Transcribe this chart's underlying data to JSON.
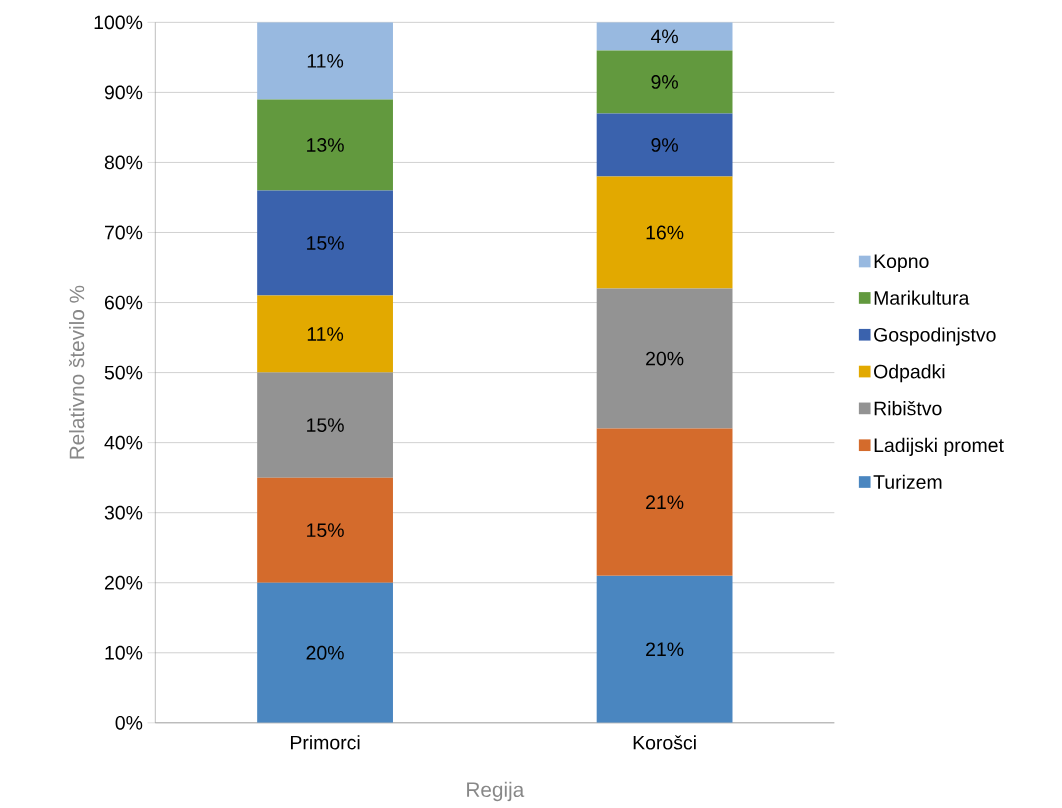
{
  "chart_data": {
    "type": "bar",
    "stacked": true,
    "xlabel": "Regija",
    "ylabel": "Relativno število %",
    "categories": [
      "Primorci",
      "Korošci"
    ],
    "series": [
      {
        "name": "Turizem",
        "color": "#4a86c0",
        "values": [
          20,
          21
        ],
        "value_labels": [
          "20%",
          "21%"
        ]
      },
      {
        "name": "Ladijski promet",
        "color": "#d46b2c",
        "values": [
          15,
          21
        ],
        "value_labels": [
          "15%",
          "21%"
        ]
      },
      {
        "name": "Ribištvo",
        "color": "#939393",
        "values": [
          15,
          20
        ],
        "value_labels": [
          "15%",
          "20%"
        ]
      },
      {
        "name": "Odpadki",
        "color": "#e2a900",
        "values": [
          11,
          16
        ],
        "value_labels": [
          "11%",
          "16%"
        ]
      },
      {
        "name": "Gospodinjstvo",
        "color": "#3a62ad",
        "values": [
          15,
          9
        ],
        "value_labels": [
          "15%",
          "9%"
        ]
      },
      {
        "name": "Marikultura",
        "color": "#62993e",
        "values": [
          13,
          9
        ],
        "value_labels": [
          "13%",
          "9%"
        ]
      },
      {
        "name": "Kopno",
        "color": "#98b9e0",
        "values": [
          11,
          4
        ],
        "value_labels": [
          "11%",
          "4%"
        ]
      }
    ],
    "ylim": [
      0,
      100
    ],
    "yticks": [
      {
        "value": 0,
        "label": "0%"
      },
      {
        "value": 10,
        "label": "10%"
      },
      {
        "value": 20,
        "label": "20%"
      },
      {
        "value": 30,
        "label": "30%"
      },
      {
        "value": 40,
        "label": "40%"
      },
      {
        "value": 50,
        "label": "50%"
      },
      {
        "value": 60,
        "label": "60%"
      },
      {
        "value": 70,
        "label": "70%"
      },
      {
        "value": 80,
        "label": "80%"
      },
      {
        "value": 90,
        "label": "90%"
      },
      {
        "value": 100,
        "label": "100%"
      }
    ],
    "grid": "y",
    "legend": "right"
  }
}
